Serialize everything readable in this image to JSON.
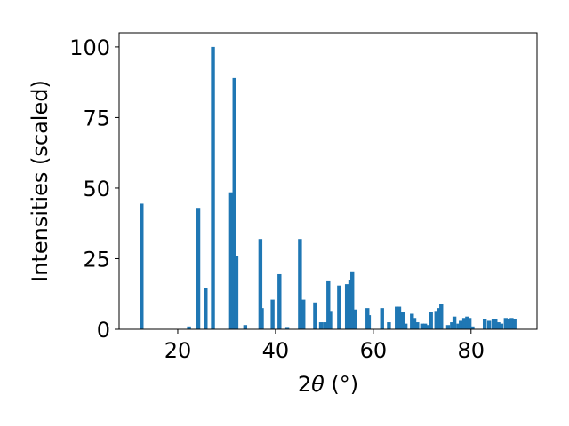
{
  "chart_data": {
    "type": "bar",
    "xlabel_prefix": "2",
    "xlabel_symbol": "θ",
    "xlabel_suffix": " (°)",
    "ylabel": "Intensities (scaled)",
    "xlim": [
      8,
      93.5
    ],
    "ylim": [
      0,
      105
    ],
    "xticks": [
      20,
      40,
      60,
      80
    ],
    "yticks": [
      0,
      25,
      50,
      75,
      100
    ],
    "grid": false,
    "bar_color": "#1f77b4",
    "bar_width": 0.8,
    "x": [
      12.6,
      22.3,
      24.2,
      25.7,
      27.2,
      30.9,
      31.6,
      32.0,
      33.8,
      36.9,
      37.2,
      39.4,
      40.8,
      42.4,
      45.0,
      45.7,
      48.1,
      49.3,
      50.1,
      50.8,
      51.2,
      53.0,
      54.6,
      55.3,
      55.7,
      56.3,
      58.8,
      59.1,
      61.8,
      63.2,
      64.8,
      65.3,
      66.0,
      66.6,
      67.9,
      68.4,
      69.0,
      70.0,
      70.6,
      71.3,
      71.8,
      72.9,
      73.4,
      73.9,
      75.3,
      76.1,
      76.6,
      77.4,
      77.9,
      78.6,
      79.2,
      79.7,
      80.3,
      82.8,
      83.7,
      84.6,
      85.0,
      85.6,
      86.2,
      87.1,
      87.6,
      88.3,
      88.9
    ],
    "values": [
      44.5,
      1.0,
      43.0,
      14.5,
      100.0,
      48.5,
      89.0,
      26.0,
      1.5,
      32.0,
      7.5,
      10.5,
      19.5,
      0.5,
      32.0,
      10.5,
      9.5,
      2.5,
      2.5,
      17.0,
      6.5,
      15.5,
      16.0,
      17.5,
      20.5,
      7.0,
      7.5,
      5.0,
      7.5,
      2.5,
      8.0,
      8.0,
      6.0,
      2.0,
      5.5,
      4.0,
      2.5,
      2.0,
      2.0,
      1.5,
      6.0,
      6.5,
      7.5,
      9.0,
      1.5,
      2.5,
      4.5,
      2.0,
      3.0,
      4.0,
      4.5,
      4.0,
      1.0,
      3.5,
      3.0,
      3.5,
      3.5,
      2.5,
      2.0,
      4.0,
      3.5,
      4.0,
      3.5
    ]
  }
}
